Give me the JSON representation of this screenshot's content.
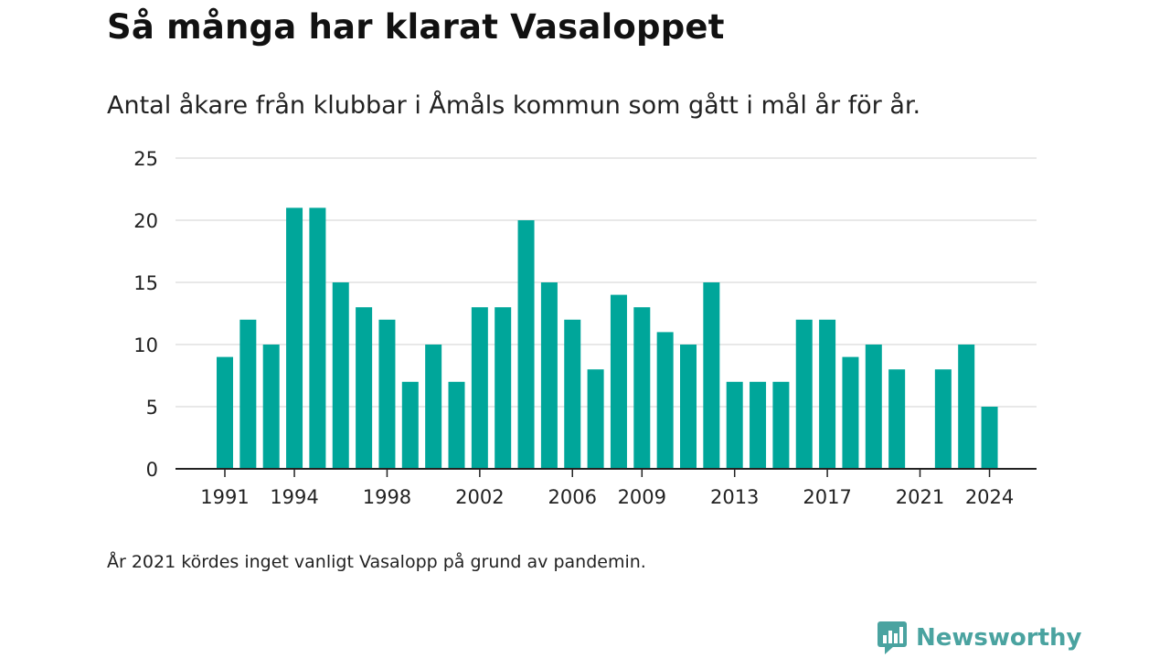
{
  "chart_data": {
    "type": "bar",
    "title": "Så många har klarat Vasaloppet",
    "subtitle": "Antal åkare från klubbar i Åmåls kommun som gått i mål år för år.",
    "categories": [
      1991,
      1992,
      1993,
      1994,
      1995,
      1996,
      1997,
      1998,
      1999,
      2000,
      2001,
      2002,
      2003,
      2004,
      2005,
      2006,
      2007,
      2008,
      2009,
      2010,
      2011,
      2012,
      2013,
      2014,
      2015,
      2016,
      2017,
      2018,
      2019,
      2020,
      2021,
      2022,
      2023,
      2024
    ],
    "values": [
      9,
      12,
      10,
      21,
      21,
      15,
      13,
      12,
      7,
      10,
      7,
      13,
      13,
      20,
      15,
      12,
      8,
      14,
      13,
      11,
      10,
      15,
      7,
      7,
      7,
      12,
      12,
      9,
      10,
      8,
      null,
      8,
      10,
      5
    ],
    "x_tick_labels": [
      "1991",
      "1994",
      "1998",
      "2002",
      "2006",
      "2009",
      "2013",
      "2017",
      "2021",
      "2024"
    ],
    "y_ticks": [
      0,
      5,
      10,
      15,
      20,
      25
    ],
    "ylim": [
      0,
      25
    ],
    "xlabel": "",
    "ylabel": "",
    "grid": true,
    "legend": "none",
    "bar_color": "#00a69a",
    "footnote": "År 2021 kördes inget vanligt Vasalopp på grund av pandemin."
  },
  "brand": {
    "name": "Newsworthy",
    "icon": "newsworthy-logo-icon",
    "color": "#4aa3a0"
  }
}
